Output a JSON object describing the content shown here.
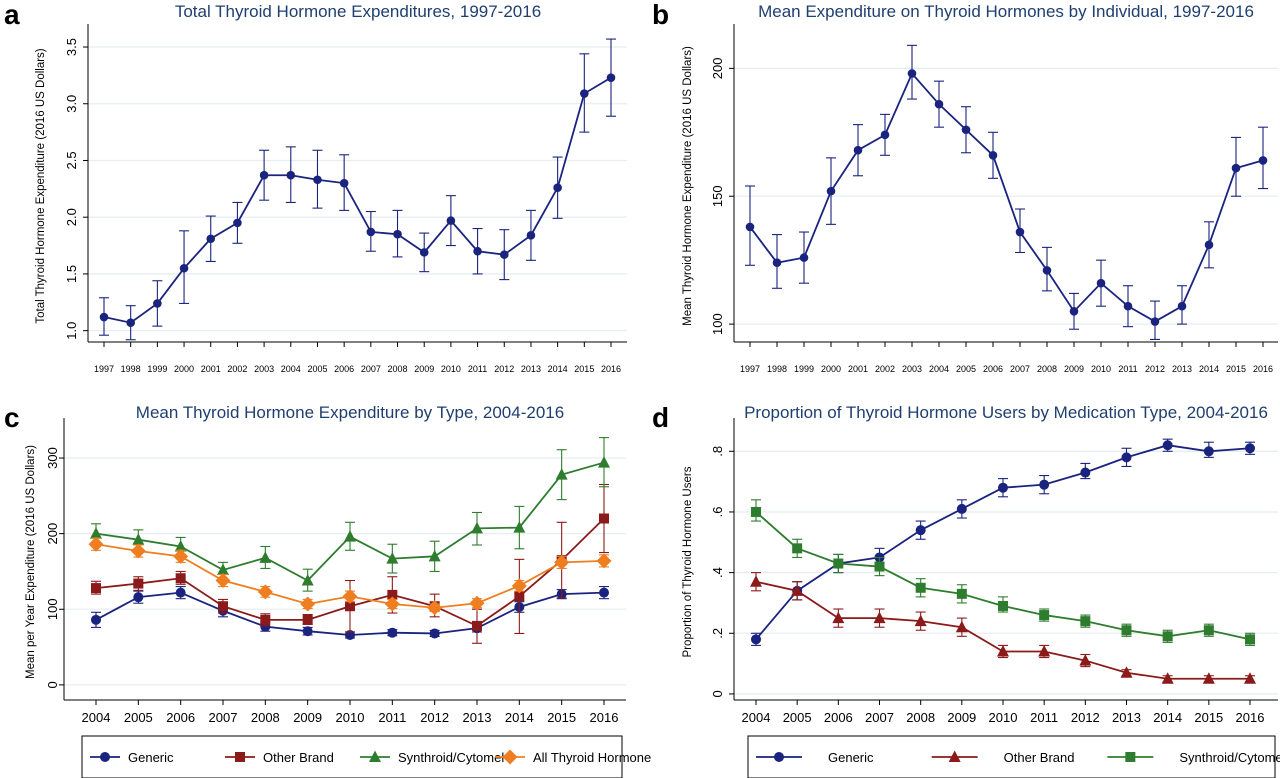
{
  "colors": {
    "navy": "#1a237e",
    "maroon": "#8b1a1a",
    "green": "#2e7d2e",
    "orange": "#ee7e1f",
    "grid": "#e7eef2",
    "title": "#1f3f6f"
  },
  "legend_c": [
    "Generic",
    "Other Brand",
    "Synthroid/Cytomel",
    "All Thyroid Hormone"
  ],
  "legend_d": [
    "Generic",
    "Other Brand",
    "Synthroid/Cytomel"
  ],
  "chart_data": [
    {
      "id": "a",
      "panel_label": "a",
      "type": "line",
      "title": "Total Thyroid Hormone Expenditures, 1997-2016",
      "ylabel": "Total Thyroid Hormone Expenditure (2016 US Dollars)",
      "xlabel": "",
      "x": [
        "1997",
        "1998",
        "1999",
        "2000",
        "2001",
        "2002",
        "2003",
        "2004",
        "2005",
        "2006",
        "2007",
        "2008",
        "2009",
        "2010",
        "2011",
        "2012",
        "2013",
        "2014",
        "2015",
        "2016"
      ],
      "ylim": [
        0.9,
        3.65
      ],
      "yticks": [
        1.0,
        1.5,
        2.0,
        2.5,
        3.0,
        3.5
      ],
      "ytick_labels": [
        "1.0",
        "1.5",
        "2.0",
        "2.5",
        "3.0",
        "3.5"
      ],
      "grid": true,
      "series": [
        {
          "color": "#1a237e",
          "marker": "circle",
          "values": [
            1.12,
            1.07,
            1.24,
            1.55,
            1.81,
            1.95,
            2.37,
            2.37,
            2.33,
            2.3,
            1.87,
            1.85,
            1.69,
            1.97,
            1.7,
            1.67,
            1.84,
            2.26,
            3.09,
            3.23
          ],
          "lower": [
            0.96,
            0.92,
            1.04,
            1.24,
            1.61,
            1.77,
            2.15,
            2.13,
            2.08,
            2.06,
            1.7,
            1.65,
            1.52,
            1.75,
            1.5,
            1.45,
            1.62,
            1.99,
            2.75,
            2.89
          ],
          "upper": [
            1.29,
            1.22,
            1.44,
            1.88,
            2.01,
            2.13,
            2.59,
            2.62,
            2.59,
            2.55,
            2.05,
            2.06,
            1.86,
            2.19,
            1.9,
            1.89,
            2.06,
            2.53,
            3.44,
            3.57
          ]
        }
      ]
    },
    {
      "id": "b",
      "panel_label": "b",
      "type": "line",
      "title": "Mean Expenditure on Thyroid Hormones by Individual, 1997-2016",
      "ylabel": "Mean Thyroid Hormone Expenditure (2016 US Dollars)",
      "xlabel": "",
      "x": [
        "1997",
        "1998",
        "1999",
        "2000",
        "2001",
        "2002",
        "2003",
        "2004",
        "2005",
        "2006",
        "2007",
        "2008",
        "2009",
        "2010",
        "2011",
        "2012",
        "2013",
        "2014",
        "2015",
        "2016"
      ],
      "ylim": [
        93,
        215
      ],
      "yticks": [
        100,
        150,
        200
      ],
      "ytick_labels": [
        "100",
        "150",
        "200"
      ],
      "grid": true,
      "series": [
        {
          "color": "#1a237e",
          "marker": "circle",
          "values": [
            138,
            124,
            126,
            152,
            168,
            174,
            198,
            186,
            176,
            166,
            136,
            121,
            105,
            116,
            107,
            101,
            107,
            131,
            161,
            164
          ],
          "lower": [
            123,
            114,
            116,
            139,
            158,
            166,
            188,
            177,
            167,
            157,
            128,
            113,
            98,
            107,
            99,
            94,
            100,
            122,
            150,
            153
          ],
          "upper": [
            154,
            135,
            136,
            165,
            178,
            182,
            209,
            195,
            185,
            175,
            145,
            130,
            112,
            125,
            115,
            109,
            115,
            140,
            173,
            177
          ]
        }
      ]
    },
    {
      "id": "c",
      "panel_label": "c",
      "type": "line",
      "title": "Mean Thyroid Hormone Expenditure by Type, 2004-2016",
      "ylabel": "Mean per Year Expenditure (2016 US Dollars)",
      "xlabel": "",
      "x": [
        "2004",
        "2005",
        "2006",
        "2007",
        "2008",
        "2009",
        "2010",
        "2011",
        "2012",
        "2013",
        "2014",
        "2015",
        "2016"
      ],
      "ylim": [
        -20,
        345
      ],
      "yticks": [
        0,
        100,
        200,
        300
      ],
      "ytick_labels": [
        "0",
        "100",
        "200",
        "300"
      ],
      "grid": true,
      "legend": "bottom",
      "series": [
        {
          "name": "Generic",
          "color": "#1a237e",
          "marker": "circle",
          "values": [
            86,
            116,
            122,
            98,
            77,
            71,
            66,
            69,
            68,
            75,
            103,
            120,
            122
          ],
          "lower": [
            76,
            108,
            114,
            90,
            71,
            66,
            62,
            65,
            64,
            70,
            96,
            114,
            114
          ],
          "upper": [
            96,
            124,
            130,
            106,
            83,
            76,
            70,
            73,
            72,
            80,
            110,
            126,
            130
          ]
        },
        {
          "name": "Other Brand",
          "color": "#8b1a1a",
          "marker": "square",
          "values": [
            128,
            134,
            141,
            104,
            86,
            86,
            104,
            119,
            104,
            78,
            117,
            165,
            220
          ],
          "lower": [
            120,
            125,
            133,
            95,
            78,
            80,
            70,
            95,
            90,
            55,
            68,
            115,
            175
          ],
          "upper": [
            137,
            143,
            150,
            113,
            94,
            93,
            138,
            143,
            120,
            100,
            166,
            215,
            265
          ]
        },
        {
          "name": "Synthroid/Cytomel",
          "color": "#2e7d2e",
          "marker": "triangle",
          "values": [
            200,
            192,
            183,
            152,
            168,
            138,
            196,
            167,
            170,
            207,
            208,
            278,
            294
          ],
          "lower": [
            188,
            180,
            172,
            140,
            154,
            124,
            178,
            148,
            150,
            185,
            180,
            245,
            262
          ],
          "upper": [
            213,
            205,
            195,
            162,
            183,
            153,
            215,
            186,
            190,
            228,
            236,
            311,
            327
          ]
        },
        {
          "name": "All Thyroid Hormone",
          "color": "#ee7e1f",
          "marker": "diamond",
          "values": [
            186,
            177,
            170,
            138,
            123,
            107,
            117,
            107,
            102,
            108,
            131,
            162,
            164
          ],
          "lower": [
            178,
            169,
            162,
            130,
            116,
            101,
            110,
            101,
            97,
            102,
            124,
            154,
            156
          ],
          "upper": [
            194,
            185,
            178,
            146,
            130,
            113,
            124,
            113,
            107,
            114,
            138,
            170,
            172
          ]
        }
      ]
    },
    {
      "id": "d",
      "panel_label": "d",
      "type": "line",
      "title": "Proportion of Thyroid Hormone Users by Medication Type, 2004-2016",
      "ylabel": "Proportion of Thyroid Hormone Users",
      "xlabel": "",
      "x": [
        "2004",
        "2005",
        "2006",
        "2007",
        "2008",
        "2009",
        "2010",
        "2011",
        "2012",
        "2013",
        "2014",
        "2015",
        "2016"
      ],
      "ylim": [
        -0.02,
        0.89
      ],
      "yticks": [
        0,
        0.2,
        0.4,
        0.6,
        0.8
      ],
      "ytick_labels": [
        "0",
        ".2",
        ".4",
        ".6",
        ".8"
      ],
      "grid": true,
      "legend": "bottom",
      "series": [
        {
          "name": "Generic",
          "color": "#1a237e",
          "marker": "circle",
          "values": [
            0.18,
            0.34,
            0.43,
            0.45,
            0.54,
            0.61,
            0.68,
            0.69,
            0.73,
            0.78,
            0.82,
            0.8,
            0.81
          ],
          "lower": [
            0.16,
            0.31,
            0.4,
            0.42,
            0.51,
            0.58,
            0.65,
            0.66,
            0.71,
            0.75,
            0.8,
            0.78,
            0.79
          ],
          "upper": [
            0.2,
            0.37,
            0.46,
            0.48,
            0.57,
            0.64,
            0.71,
            0.72,
            0.76,
            0.81,
            0.84,
            0.83,
            0.83
          ]
        },
        {
          "name": "Other Brand",
          "color": "#8b1a1a",
          "marker": "triangle",
          "values": [
            0.37,
            0.34,
            0.25,
            0.25,
            0.24,
            0.22,
            0.14,
            0.14,
            0.11,
            0.07,
            0.05,
            0.05,
            0.05
          ],
          "lower": [
            0.34,
            0.31,
            0.22,
            0.22,
            0.21,
            0.19,
            0.12,
            0.12,
            0.09,
            0.06,
            0.04,
            0.04,
            0.04
          ],
          "upper": [
            0.4,
            0.37,
            0.28,
            0.28,
            0.27,
            0.25,
            0.16,
            0.16,
            0.13,
            0.08,
            0.06,
            0.06,
            0.06
          ]
        },
        {
          "name": "Synthroid/Cytomel",
          "color": "#2e7d2e",
          "marker": "square",
          "values": [
            0.6,
            0.48,
            0.43,
            0.42,
            0.35,
            0.33,
            0.29,
            0.26,
            0.24,
            0.21,
            0.19,
            0.21,
            0.18
          ],
          "lower": [
            0.57,
            0.45,
            0.4,
            0.39,
            0.32,
            0.3,
            0.27,
            0.24,
            0.22,
            0.19,
            0.17,
            0.19,
            0.16
          ],
          "upper": [
            0.64,
            0.51,
            0.46,
            0.45,
            0.38,
            0.36,
            0.32,
            0.28,
            0.26,
            0.23,
            0.21,
            0.23,
            0.2
          ]
        }
      ]
    }
  ]
}
